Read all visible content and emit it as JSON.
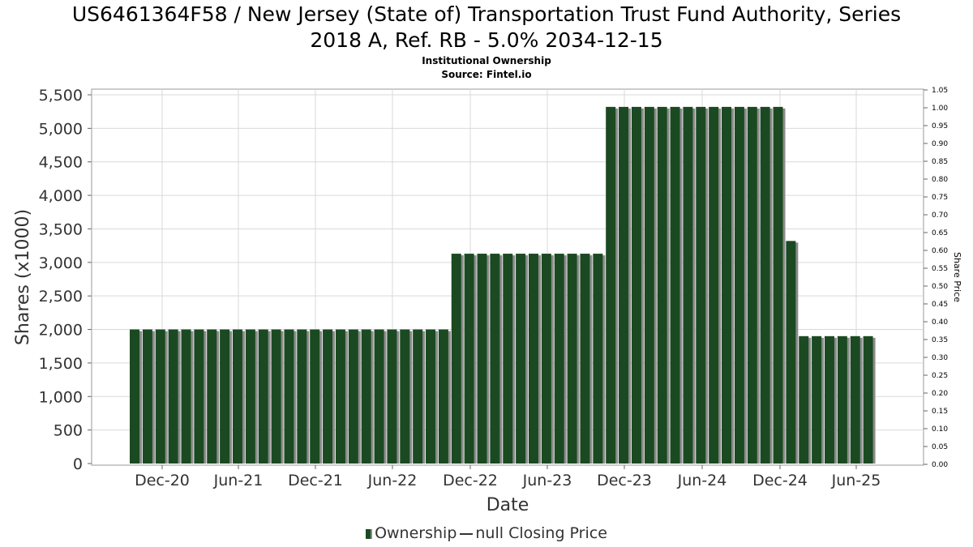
{
  "title_lines": [
    "US6461364F58 / New Jersey (State of) Transportation Trust Fund Authority, Series",
    "2018 A, Ref. RB - 5.0% 2034-12-15"
  ],
  "subtitle": "Institutional Ownership",
  "source": "Source: Fintel.io",
  "legend": {
    "ownership_label": "Ownership",
    "price_label": "null Closing Price"
  },
  "colors": {
    "bar_fill": "#1b4a22",
    "bar_shadow": "#8a8a8a",
    "grid": "#d9d9d9"
  },
  "chart_data": {
    "type": "bar",
    "title": "US6461364F58 / New Jersey (State of) Transportation Trust Fund Authority, Series 2018 A, Ref. RB - 5.0% 2034-12-15",
    "xlabel": "Date",
    "ylabel": "Shares (x1000)",
    "y2label": "Share Price",
    "ylim": [
      0,
      5500
    ],
    "y2lim": [
      0,
      1.05
    ],
    "yticks": [
      "0",
      "500",
      "1,000",
      "1,500",
      "2,000",
      "2,500",
      "3,000",
      "3,500",
      "4,000",
      "4,500",
      "5,000",
      "5,500"
    ],
    "y2ticks": [
      "0.00",
      "0.05",
      "0.10",
      "0.15",
      "0.20",
      "0.25",
      "0.30",
      "0.35",
      "0.40",
      "0.45",
      "0.50",
      "0.55",
      "0.60",
      "0.65",
      "0.70",
      "0.75",
      "0.80",
      "0.85",
      "0.90",
      "0.95",
      "1.00",
      "1.05"
    ],
    "xticks": [
      "Dec-20",
      "Jun-21",
      "Dec-21",
      "Jun-22",
      "Dec-22",
      "Jun-23",
      "Dec-23",
      "Jun-24",
      "Dec-24",
      "Jun-25"
    ],
    "grid": true,
    "legend_position": "bottom",
    "series": [
      {
        "name": "Ownership",
        "values": [
          2000,
          2000,
          2000,
          2000,
          2000,
          2000,
          2000,
          2000,
          2000,
          2000,
          2000,
          2000,
          2000,
          2000,
          2000,
          2000,
          2000,
          2000,
          2000,
          2000,
          2000,
          2000,
          2000,
          2000,
          2000,
          3130,
          3130,
          3130,
          3130,
          3130,
          3130,
          3130,
          3130,
          3130,
          3130,
          3130,
          3130,
          5320,
          5320,
          5320,
          5320,
          5320,
          5320,
          5320,
          5320,
          5320,
          5320,
          5320,
          5320,
          5320,
          5320,
          3320,
          1900,
          1900,
          1900,
          1900,
          1900,
          1900
        ]
      }
    ]
  }
}
